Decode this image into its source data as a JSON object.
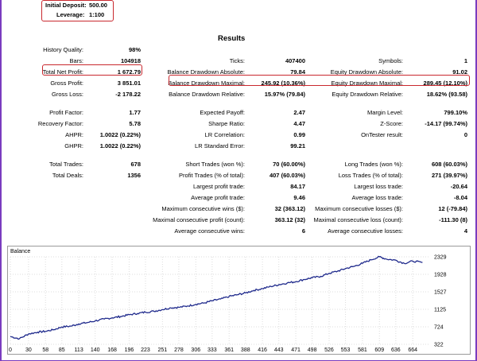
{
  "header": {
    "initial_deposit_label": "Initial Deposit:",
    "initial_deposit_value": "500.00",
    "leverage_label": "Leverage:",
    "leverage_value": "1:100"
  },
  "title": "Results",
  "stats": [
    {
      "label": "History Quality:",
      "value": "98%"
    },
    {
      "label": "Bars:",
      "value": "104918"
    },
    {
      "label": "Ticks:",
      "value": "407400"
    },
    {
      "label": "Symbols:",
      "value": "1"
    },
    {
      "label": "Total Net Profit:",
      "value": "1 672.79"
    },
    {
      "label": "Balance Drawdown Absolute:",
      "value": "79.84"
    },
    {
      "label": "Equity Drawdown Absolute:",
      "value": "91.02"
    },
    {
      "label": "Gross Profit:",
      "value": "3 851.01"
    },
    {
      "label": "Balance Drawdown Maximal:",
      "value": "245.92 (10.36%)"
    },
    {
      "label": "Equity Drawdown Maximal:",
      "value": "289.45 (12.10%)"
    },
    {
      "label": "Gross Loss:",
      "value": "-2 178.22"
    },
    {
      "label": "Balance Drawdown Relative:",
      "value": "15.97% (79.84)"
    },
    {
      "label": "Equity Drawdown Relative:",
      "value": "18.62% (93.58)"
    },
    {
      "label": "Profit Factor:",
      "value": "1.77"
    },
    {
      "label": "Expected Payoff:",
      "value": "2.47"
    },
    {
      "label": "Margin Level:",
      "value": "799.10%"
    },
    {
      "label": "Recovery Factor:",
      "value": "5.78"
    },
    {
      "label": "Sharpe Ratio:",
      "value": "4.47"
    },
    {
      "label": "Z-Score:",
      "value": "-14.17 (99.74%)"
    },
    {
      "label": "AHPR:",
      "value": "1.0022 (0.22%)"
    },
    {
      "label": "LR Correlation:",
      "value": "0.99"
    },
    {
      "label": "OnTester result:",
      "value": "0"
    },
    {
      "label": "GHPR:",
      "value": "1.0022 (0.22%)"
    },
    {
      "label": "LR Standard Error:",
      "value": "99.21"
    },
    {
      "label": "Total Trades:",
      "value": "678"
    },
    {
      "label": "Short Trades (won %):",
      "value": "70 (60.00%)"
    },
    {
      "label": "Long Trades (won %):",
      "value": "608 (60.03%)"
    },
    {
      "label": "Total Deals:",
      "value": "1356"
    },
    {
      "label": "Profit Trades (% of total):",
      "value": "407 (60.03%)"
    },
    {
      "label": "Loss Trades (% of total):",
      "value": "271 (39.97%)"
    },
    {
      "label": "Largest profit trade:",
      "value": "84.17"
    },
    {
      "label": "Largest loss trade:",
      "value": "-20.64"
    },
    {
      "label": "Average profit trade:",
      "value": "9.46"
    },
    {
      "label": "Average loss trade:",
      "value": "-8.04"
    },
    {
      "label": "Maximum consecutive wins ($):",
      "value": "32 (363.12)"
    },
    {
      "label": "Maximum consecutive losses ($):",
      "value": "12 (-79.84)"
    },
    {
      "label": "Maximal consecutive profit (count):",
      "value": "363.12 (32)"
    },
    {
      "label": "Maximal consecutive loss (count):",
      "value": "-111.30 (8)"
    },
    {
      "label": "Average consecutive wins:",
      "value": "6"
    },
    {
      "label": "Average consecutive losses:",
      "value": "4"
    }
  ],
  "chart_data": {
    "type": "line",
    "title": "Balance",
    "x_ticks": [
      "0",
      "30",
      "58",
      "85",
      "113",
      "140",
      "168",
      "196",
      "223",
      "251",
      "278",
      "306",
      "333",
      "361",
      "388",
      "416",
      "443",
      "471",
      "498",
      "526",
      "553",
      "581",
      "609",
      "636",
      "664"
    ],
    "y_ticks": [
      "2329",
      "1928",
      "1527",
      "1125",
      "724",
      "322"
    ],
    "ylim": [
      322,
      2329
    ],
    "xlim": [
      0,
      690
    ],
    "grid": true,
    "series": [
      {
        "color": "#1f2a8c",
        "x": [
          0,
          15,
          30,
          45,
          58,
          72,
          85,
          100,
          113,
          127,
          140,
          155,
          168,
          182,
          196,
          210,
          223,
          237,
          251,
          265,
          278,
          292,
          306,
          320,
          333,
          347,
          361,
          375,
          388,
          402,
          416,
          430,
          443,
          457,
          471,
          485,
          498,
          512,
          526,
          540,
          553,
          567,
          581,
          595,
          609,
          620,
          636,
          650,
          664,
          680
        ],
        "y": [
          500,
          450,
          560,
          600,
          620,
          660,
          720,
          740,
          790,
          820,
          860,
          900,
          930,
          960,
          1000,
          1030,
          1060,
          1080,
          1120,
          1160,
          1170,
          1200,
          1240,
          1270,
          1320,
          1360,
          1420,
          1460,
          1500,
          1560,
          1600,
          1650,
          1690,
          1730,
          1760,
          1810,
          1850,
          1880,
          1950,
          2000,
          2060,
          2110,
          2180,
          2260,
          2330,
          2280,
          2250,
          2180,
          2230,
          2200
        ]
      }
    ]
  }
}
